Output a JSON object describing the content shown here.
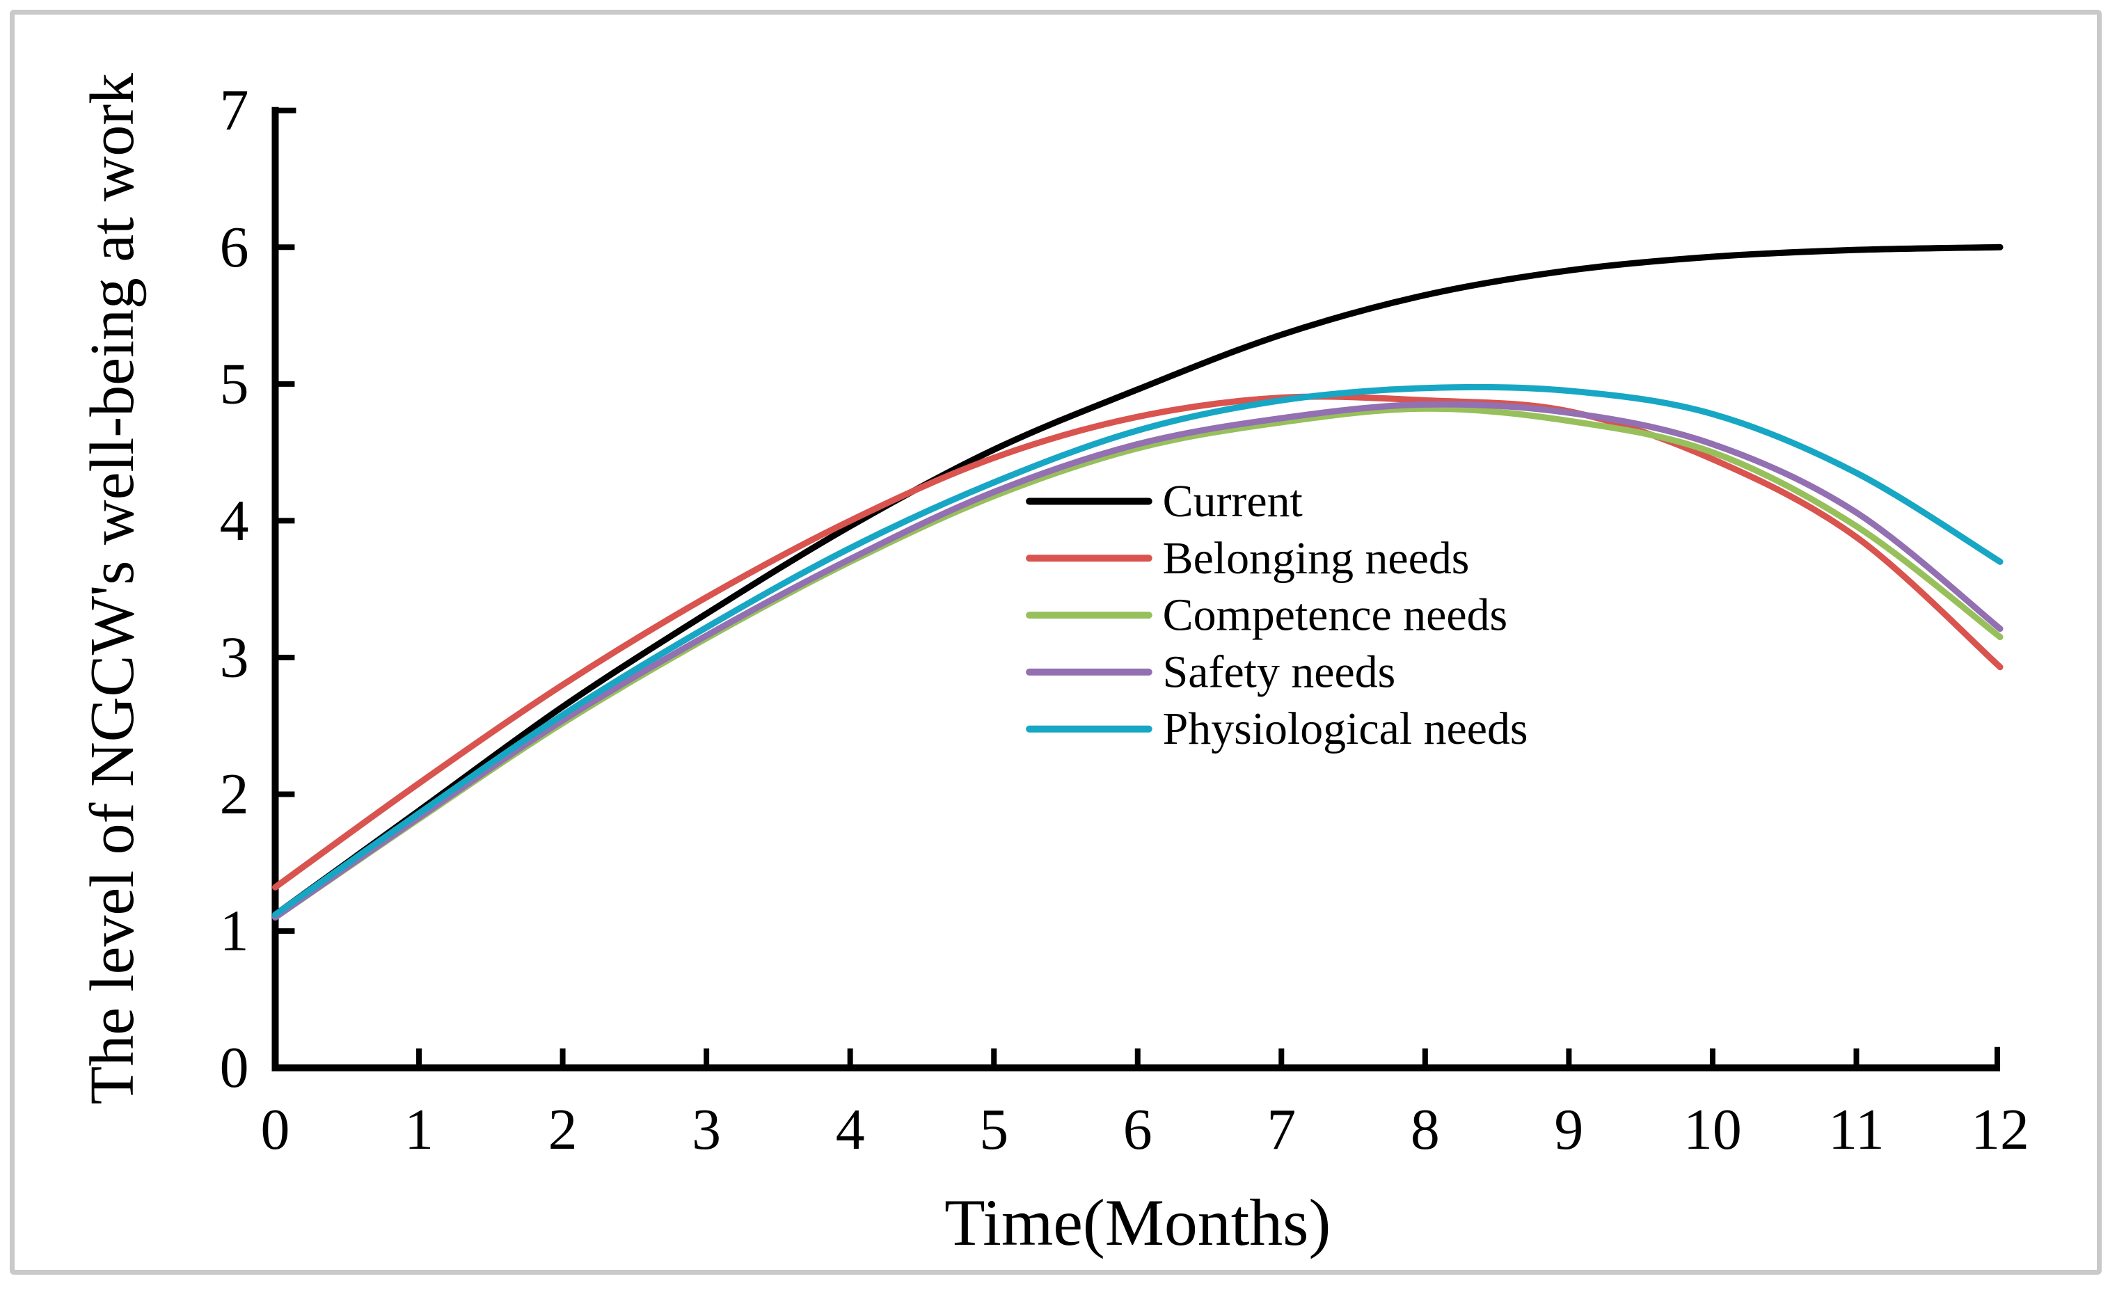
{
  "figure": {
    "background": "#ffffff",
    "frame_color": "#c9c9c9",
    "axis_color": "#000000"
  },
  "chart_data": {
    "type": "line",
    "title": "",
    "xlabel": "Time(Months)",
    "ylabel": "The level of NGCW's well-being at work",
    "xlim": [
      0,
      12
    ],
    "ylim": [
      0,
      7
    ],
    "x_ticks": [
      0,
      1,
      2,
      3,
      4,
      5,
      6,
      7,
      8,
      9,
      10,
      11,
      12
    ],
    "y_ticks": [
      0,
      1,
      2,
      3,
      4,
      5,
      6,
      7
    ],
    "grid": false,
    "legend_position": "inside-center",
    "x": [
      0,
      1,
      2,
      3,
      4,
      5,
      6,
      7,
      8,
      9,
      10,
      11,
      12
    ],
    "series": [
      {
        "name": "Current",
        "color": "#000000",
        "values": [
          1.12,
          1.88,
          2.64,
          3.32,
          3.96,
          4.52,
          4.96,
          5.36,
          5.65,
          5.83,
          5.93,
          5.98,
          6.0
        ]
      },
      {
        "name": "Belonging needs",
        "color": "#d9534f",
        "values": [
          1.32,
          2.08,
          2.8,
          3.44,
          4.0,
          4.46,
          4.76,
          4.9,
          4.88,
          4.8,
          4.45,
          3.88,
          2.93
        ]
      },
      {
        "name": "Competence needs",
        "color": "#97c05c",
        "values": [
          1.1,
          1.82,
          2.52,
          3.14,
          3.7,
          4.18,
          4.53,
          4.72,
          4.82,
          4.73,
          4.5,
          3.96,
          3.15
        ]
      },
      {
        "name": "Safety needs",
        "color": "#9370b1",
        "values": [
          1.1,
          1.83,
          2.54,
          3.16,
          3.72,
          4.21,
          4.56,
          4.75,
          4.85,
          4.79,
          4.56,
          4.06,
          3.21
        ]
      },
      {
        "name": "Physiological needs",
        "color": "#17a7c5",
        "values": [
          1.12,
          1.86,
          2.58,
          3.22,
          3.8,
          4.28,
          4.66,
          4.88,
          4.97,
          4.95,
          4.78,
          4.35,
          3.7
        ]
      }
    ]
  }
}
